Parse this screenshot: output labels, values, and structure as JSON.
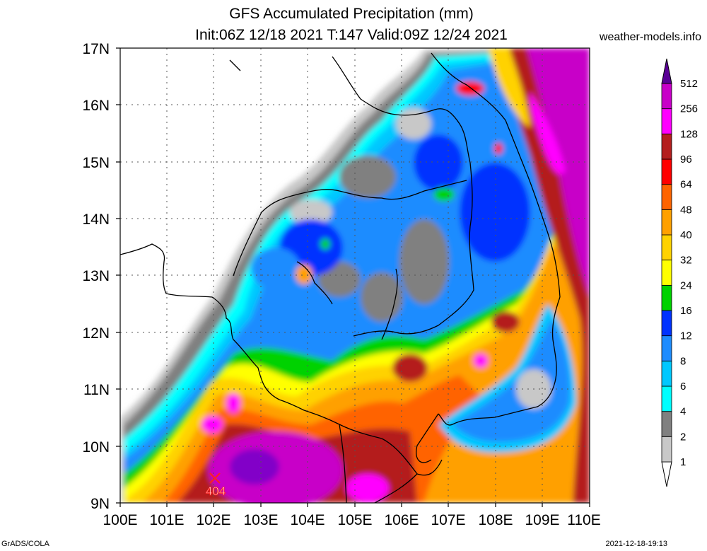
{
  "header": {
    "title": "GFS Accumulated Precipitation (mm)",
    "subtitle": "Init:06Z 12/18 2021 T:147 Valid:09Z 12/24 2021",
    "site": "weather-models.info"
  },
  "map": {
    "lat_labels": [
      "17N",
      "16N",
      "15N",
      "14N",
      "13N",
      "12N",
      "11N",
      "10N",
      "9N"
    ],
    "lon_labels": [
      "100E",
      "101E",
      "102E",
      "103E",
      "104E",
      "105E",
      "106E",
      "107E",
      "108E",
      "109E",
      "110E"
    ],
    "lat_range": [
      9,
      17
    ],
    "lon_range": [
      100,
      110
    ],
    "marker": {
      "label": "404",
      "lon": 102.05,
      "lat": 9.4
    }
  },
  "colorbar": {
    "levels": [
      "1",
      "2",
      "4",
      "6",
      "8",
      "12",
      "16",
      "24",
      "32",
      "40",
      "48",
      "64",
      "96",
      "128",
      "256",
      "512"
    ],
    "colors": [
      "#c8c8c8",
      "#808080",
      "#00ffff",
      "#00c8ff",
      "#1e8cff",
      "#0032ff",
      "#00d200",
      "#ffff00",
      "#ffd200",
      "#ffa000",
      "#ff6400",
      "#ff0000",
      "#b41e1e",
      "#ff00ff",
      "#c800c8",
      "#8200c8",
      "#5a0096"
    ]
  },
  "footer": {
    "left": "GrADS/COLA",
    "right": "2021-12-18-19:13"
  }
}
